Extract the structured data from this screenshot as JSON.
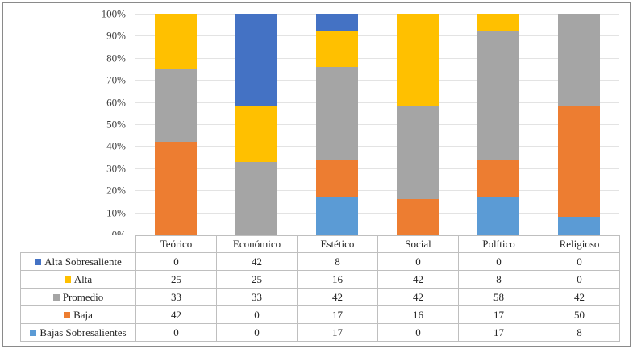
{
  "figure": {
    "background": "#ffffff",
    "border_color": "#8a8a8a",
    "gridline_color": "#e3e3e3",
    "table_border_color": "#bfbfbf",
    "text_color": "#262626",
    "axis_text_color": "#3d3d3d"
  },
  "chart_data": {
    "type": "bar",
    "subtype": "stacked-100-percent-column",
    "title": "",
    "xlabel": "",
    "ylabel": "",
    "categories": [
      "Teórico",
      "Económico",
      "Estético",
      "Social",
      "Político",
      "Religioso"
    ],
    "series": [
      {
        "name": "Alta Sobresaliente",
        "color": "#4472C4",
        "values": [
          0,
          42,
          8,
          0,
          0,
          0
        ]
      },
      {
        "name": "Alta",
        "color": "#FFC000",
        "values": [
          25,
          25,
          16,
          42,
          8,
          0
        ]
      },
      {
        "name": "Promedio",
        "color": "#A5A5A5",
        "values": [
          33,
          33,
          42,
          42,
          58,
          42
        ]
      },
      {
        "name": "Baja",
        "color": "#ED7D31",
        "values": [
          42,
          0,
          17,
          16,
          17,
          50
        ]
      },
      {
        "name": "Bajas Sobresalientes",
        "color": "#5B9BD5",
        "values": [
          0,
          0,
          17,
          0,
          17,
          8
        ]
      }
    ],
    "stack_order_bottom_to_top": [
      "Bajas Sobresalientes",
      "Baja",
      "Promedio",
      "Alta",
      "Alta Sobresaliente"
    ],
    "y_axis": {
      "min": 0,
      "max": 100,
      "ticks": [
        "0%",
        "10%",
        "20%",
        "30%",
        "40%",
        "50%",
        "60%",
        "70%",
        "80%",
        "90%",
        "100%"
      ]
    },
    "grid": true,
    "legend_position": "table-left"
  }
}
